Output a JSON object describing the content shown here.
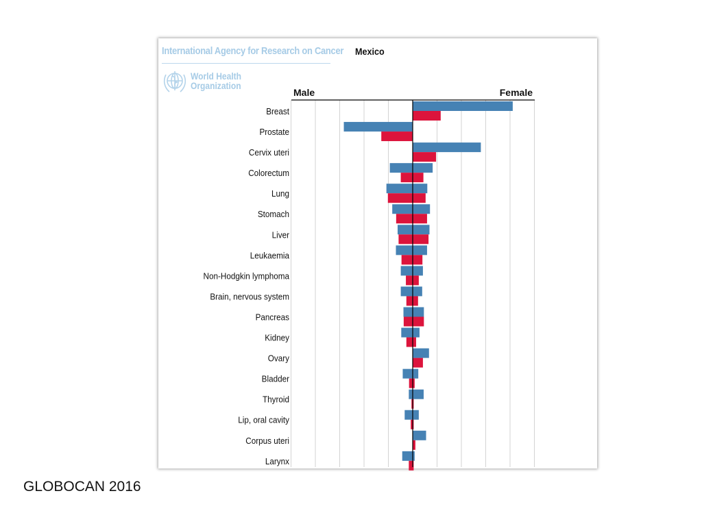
{
  "header": {
    "agency": "International Agency for Research on Cancer",
    "who_line1": "World Health",
    "who_line2": "Organization"
  },
  "footer": {
    "source": "GLOBOCAN 2016"
  },
  "colors": {
    "incidence": "#4682b4",
    "mortality": "#dc143c",
    "grid": "#d3d3d3",
    "axis": "#000000",
    "agency_text": "#a6cbe6"
  },
  "chart_data": {
    "type": "bar",
    "title": "Mexico",
    "left_label": "Male",
    "right_label": "Female",
    "categories": [
      "Breast",
      "Prostate",
      "Cervix uteri",
      "Colorectum",
      "Lung",
      "Stomach",
      "Liver",
      "Leukaemia",
      "Non-Hodgkin lymphoma",
      "Brain, nervous system",
      "Pancreas",
      "Kidney",
      "Ovary",
      "Bladder",
      "Thyroid",
      "Lip, oral cavity",
      "Corpus uteri",
      "Larynx"
    ],
    "series": [
      {
        "key": "incidence",
        "male": [
          0,
          28.3,
          0,
          9.4,
          10.8,
          8.4,
          6.2,
          6.9,
          4.9,
          4.9,
          3.8,
          4.7,
          0,
          4.1,
          1.6,
          3.3,
          0,
          4.3
        ],
        "female": [
          41.1,
          0,
          28.0,
          8.2,
          6.0,
          7.1,
          6.9,
          5.9,
          4.2,
          3.9,
          4.6,
          2.8,
          6.7,
          2.3,
          4.5,
          2.5,
          5.5,
          0.8
        ]
      },
      {
        "key": "mortality",
        "male": [
          0,
          12.9,
          0,
          4.9,
          10.2,
          6.8,
          5.8,
          4.6,
          2.8,
          2.6,
          3.7,
          2.6,
          0,
          1.5,
          0.5,
          0.8,
          0,
          1.6
        ],
        "female": [
          11.5,
          0,
          9.6,
          4.4,
          5.3,
          5.9,
          6.5,
          4.0,
          2.5,
          2.2,
          4.6,
          1.4,
          4.2,
          0.8,
          0.4,
          0.4,
          1.1,
          0.4
        ]
      }
    ],
    "xlim": [
      -50,
      50
    ],
    "grid": true
  }
}
